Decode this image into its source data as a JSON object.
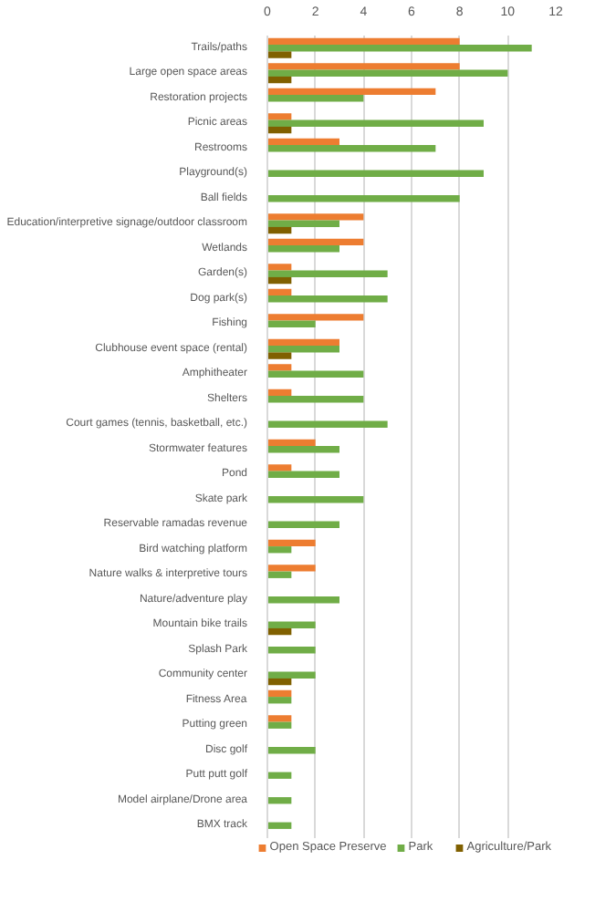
{
  "chart_data": {
    "type": "bar",
    "orientation": "horizontal",
    "categories": [
      "Trails/paths",
      "Large open space areas",
      "Restoration projects",
      "Picnic areas",
      "Restrooms",
      "Playground(s)",
      "Ball fields",
      "Education/interpretive signage/outdoor classroom",
      "Wetlands",
      "Garden(s)",
      "Dog park(s)",
      "Fishing",
      "Clubhouse event space (rental)",
      "Amphitheater",
      "Shelters",
      "Court games (tennis, basketball, etc.)",
      "Stormwater features",
      "Pond",
      "Skate park",
      "Reservable ramadas revenue",
      "Bird watching platform",
      "Nature walks & interpretive tours",
      "Nature/adventure play",
      "Mountain bike trails",
      "Splash Park",
      "Community center",
      "Fitness Area",
      "Putting green",
      "Disc golf",
      "Putt putt golf",
      "Model airplane/Drone area",
      "BMX track"
    ],
    "series": [
      {
        "name": "Open Space Preserve",
        "color": "#ed7d31",
        "values": [
          8,
          8,
          7,
          1,
          3,
          null,
          null,
          4,
          4,
          1,
          1,
          4,
          3,
          1,
          1,
          null,
          2,
          1,
          null,
          null,
          2,
          2,
          null,
          null,
          null,
          null,
          1,
          1,
          null,
          null,
          null,
          null
        ]
      },
      {
        "name": "Park",
        "color": "#70ad47",
        "values": [
          11,
          10,
          4,
          9,
          7,
          9,
          8,
          3,
          3,
          5,
          5,
          2,
          3,
          4,
          4,
          5,
          3,
          3,
          4,
          3,
          1,
          1,
          3,
          2,
          2,
          2,
          1,
          1,
          2,
          1,
          1,
          1
        ]
      },
      {
        "name": "Agriculture/Park",
        "color": "#806000",
        "values": [
          1,
          1,
          null,
          1,
          null,
          null,
          null,
          1,
          null,
          1,
          null,
          null,
          1,
          null,
          null,
          null,
          null,
          null,
          null,
          null,
          null,
          null,
          null,
          1,
          null,
          1,
          null,
          null,
          null,
          null,
          null,
          null
        ]
      }
    ],
    "xlim": [
      0,
      12
    ],
    "xticks": [
      0,
      2,
      4,
      6,
      8,
      10,
      12
    ],
    "grid": "x",
    "legend": "bottom"
  }
}
